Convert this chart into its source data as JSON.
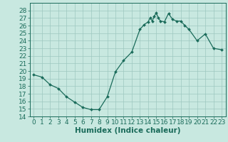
{
  "x": [
    0,
    1,
    2,
    3,
    4,
    5,
    6,
    7,
    8,
    9,
    10,
    11,
    12,
    13,
    13.5,
    14,
    14.25,
    14.5,
    14.75,
    15,
    15.25,
    15.5,
    16,
    16.5,
    17,
    17.5,
    18,
    18.5,
    19,
    20,
    21,
    22,
    23
  ],
  "y": [
    19.5,
    19.2,
    18.2,
    17.7,
    16.6,
    15.9,
    15.2,
    14.9,
    14.9,
    16.6,
    19.9,
    21.4,
    22.5,
    25.5,
    26.1,
    26.5,
    27.0,
    26.6,
    27.2,
    27.7,
    27.0,
    26.6,
    26.5,
    27.6,
    26.8,
    26.6,
    26.6,
    26.0,
    25.5,
    24.0,
    24.9,
    23.0,
    22.8
  ],
  "line_color": "#1a6b5a",
  "marker": "D",
  "marker_size": 2.0,
  "background_color": "#c8e8e0",
  "grid_color": "#9dc8c0",
  "xlabel": "Humidex (Indice chaleur)",
  "xlim": [
    -0.5,
    23.5
  ],
  "ylim": [
    14,
    29
  ],
  "yticks": [
    14,
    15,
    16,
    17,
    18,
    19,
    20,
    21,
    22,
    23,
    24,
    25,
    26,
    27,
    28
  ],
  "xtick_labels": [
    "0",
    "1",
    "2",
    "3",
    "4",
    "5",
    "6",
    "7",
    "8",
    "9",
    "10",
    "11",
    "12",
    "13",
    "14",
    "15",
    "16",
    "17",
    "18",
    "19",
    "20",
    "21",
    "22",
    "23"
  ],
  "xlabel_fontsize": 7.5,
  "tick_fontsize": 6.5,
  "line_width": 0.9
}
